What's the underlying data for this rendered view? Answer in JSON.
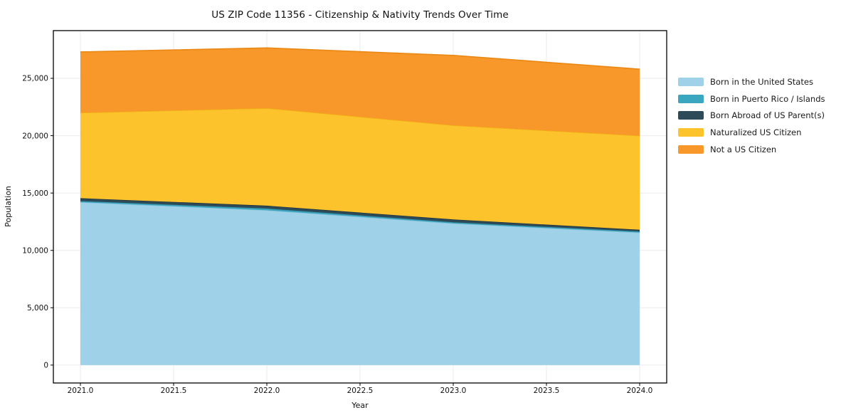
{
  "title": "US ZIP Code 11356 - Citizenship & Nativity Trends Over Time",
  "chart_data": {
    "type": "area",
    "stacked": true,
    "title": "US ZIP Code 11356 - Citizenship & Nativity Trends Over Time",
    "xlabel": "Year",
    "ylabel": "Population",
    "x": [
      2021,
      2022,
      2023,
      2024
    ],
    "series": [
      {
        "name": "Born in the United States",
        "color": "#9FD2E8",
        "edge": "#8AC3DC",
        "values": [
          14200,
          13500,
          12350,
          11550
        ]
      },
      {
        "name": "Born in Puerto Rico / Islands",
        "color": "#3BA6BF",
        "edge": "#3295AC",
        "values": [
          100,
          150,
          100,
          100
        ]
      },
      {
        "name": "Born Abroad of US Parent(s)",
        "color": "#2C4A58",
        "edge": "#203540",
        "values": [
          250,
          250,
          250,
          150
        ]
      },
      {
        "name": "Naturalized US Citizen",
        "color": "#FDC32D",
        "edge": "#F0B014",
        "values": [
          7450,
          8500,
          8200,
          8200
        ]
      },
      {
        "name": "Not a US Citizen",
        "color": "#F8982B",
        "edge": "#EA8813",
        "values": [
          5300,
          5250,
          6100,
          5800
        ]
      }
    ],
    "stack_totals": [
      27300,
      27650,
      27000,
      25800
    ],
    "x_ticks": [
      2021.0,
      2021.5,
      2022.0,
      2022.5,
      2023.0,
      2023.5,
      2024.0
    ],
    "x_tick_labels": [
      "2021.0",
      "2021.5",
      "2022.0",
      "2022.5",
      "2023.0",
      "2023.5",
      "2024.0"
    ],
    "y_ticks": [
      0,
      5000,
      10000,
      15000,
      20000,
      25000
    ],
    "y_tick_labels": [
      "0",
      "5,000",
      "10,000",
      "15,000",
      "20,000",
      "25,000"
    ],
    "xlim": [
      2020.855,
      2024.145
    ],
    "ylim": [
      -1560,
      29160
    ],
    "grid": true,
    "grid_color": "#ebebeb",
    "spine_color": "#000000",
    "legend_position": "outside-right-top"
  }
}
